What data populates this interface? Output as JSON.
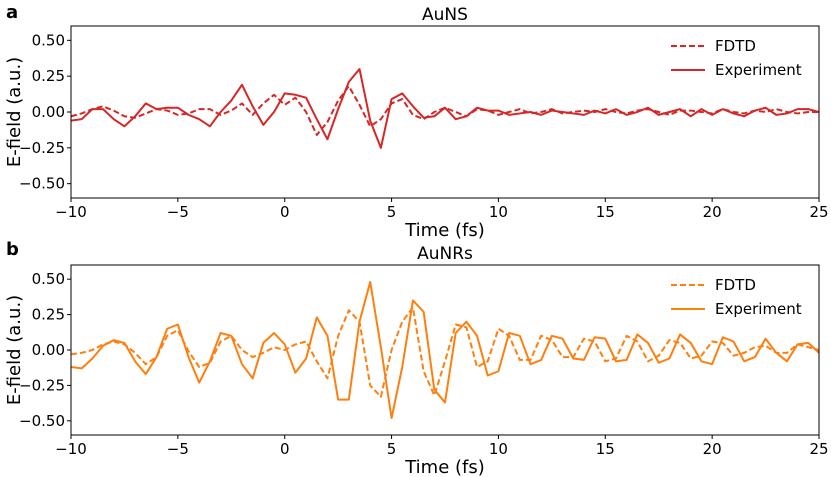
{
  "chart_data": [
    {
      "panel_label": "a",
      "type": "line",
      "title": "AuNS",
      "xlabel": "Time (fs)",
      "ylabel": "E-field (a.u.)",
      "xlim": [
        -10,
        25
      ],
      "ylim": [
        -0.6,
        0.6
      ],
      "xticks": [
        -10,
        -5,
        0,
        5,
        10,
        15,
        20,
        25
      ],
      "xtick_labels": [
        "−10",
        "−5",
        "0",
        "5",
        "10",
        "15",
        "20",
        "25"
      ],
      "yticks": [
        -0.5,
        -0.25,
        0,
        0.25,
        0.5
      ],
      "ytick_labels": [
        "−0.50",
        "−0.25",
        "0.00",
        "0.25",
        "0.50"
      ],
      "legend_position": "top-right",
      "grid": false,
      "series": [
        {
          "name": "FDTD",
          "style": "dashed",
          "color": "#d62728",
          "x": [
            -10,
            -9.5,
            -9,
            -8.5,
            -8,
            -7.5,
            -7,
            -6.5,
            -6,
            -5.5,
            -5,
            -4.5,
            -4,
            -3.5,
            -3,
            -2.5,
            -2,
            -1.5,
            -1,
            -0.5,
            0,
            0.5,
            1,
            1.5,
            2,
            2.5,
            3,
            3.5,
            4,
            4.5,
            5,
            5.5,
            6,
            6.5,
            7,
            7.5,
            8,
            8.5,
            9,
            9.5,
            10,
            10.5,
            11,
            11.5,
            12,
            12.5,
            13,
            13.5,
            14,
            14.5,
            15,
            15.5,
            16,
            16.5,
            17,
            17.5,
            18,
            18.5,
            19,
            19.5,
            20,
            20.5,
            21,
            21.5,
            22,
            22.5,
            23,
            23.5,
            24,
            24.5,
            25
          ],
          "y": [
            -0.03,
            -0.01,
            0.02,
            0.04,
            0.01,
            -0.03,
            -0.04,
            -0.01,
            0.02,
            0.01,
            -0.02,
            -0.01,
            0.02,
            0.02,
            -0.02,
            0.01,
            0.06,
            -0.02,
            0.06,
            0.12,
            0.05,
            0.1,
            0,
            -0.16,
            -0.07,
            0.08,
            0.18,
            0.05,
            -0.1,
            -0.05,
            0.06,
            0.09,
            -0.02,
            -0.05,
            0,
            0.03,
            0,
            -0.03,
            0.02,
            0.01,
            -0.02,
            0,
            0.02,
            -0.01,
            0,
            0.02,
            -0.01,
            0,
            0.01,
            0,
            0.02,
            0,
            -0.01,
            0.01,
            0.02,
            0,
            -0.02,
            0.01,
            0.01,
            0,
            -0.01,
            0.02,
            0,
            -0.01,
            0.01,
            0,
            0.02,
            0,
            -0.01,
            0,
            0
          ]
        },
        {
          "name": "Experiment",
          "style": "solid",
          "color": "#d62728",
          "x": [
            -10,
            -9.5,
            -9,
            -8.5,
            -8,
            -7.5,
            -7,
            -6.5,
            -6,
            -5.5,
            -5,
            -4.5,
            -4,
            -3.5,
            -3,
            -2.5,
            -2,
            -1.5,
            -1,
            -0.5,
            0,
            0.5,
            1,
            1.5,
            2,
            2.5,
            3,
            3.5,
            4,
            4.5,
            5,
            5.5,
            6,
            6.5,
            7,
            7.5,
            8,
            8.5,
            9,
            9.5,
            10,
            10.5,
            11,
            11.5,
            12,
            12.5,
            13,
            13.5,
            14,
            14.5,
            15,
            15.5,
            16,
            16.5,
            17,
            17.5,
            18,
            18.5,
            19,
            19.5,
            20,
            20.5,
            21,
            21.5,
            22,
            22.5,
            23,
            23.5,
            24,
            24.5,
            25
          ],
          "y": [
            -0.06,
            -0.05,
            0.02,
            0.02,
            -0.05,
            -0.1,
            -0.03,
            0.06,
            0.02,
            0.03,
            0.03,
            -0.02,
            -0.05,
            -0.1,
            0,
            0.08,
            0.19,
            0.04,
            -0.09,
            0,
            0.13,
            0.12,
            0.1,
            -0.05,
            -0.19,
            0.02,
            0.21,
            0.3,
            -0.06,
            -0.25,
            0.09,
            0.13,
            0.04,
            -0.04,
            -0.03,
            0.03,
            -0.05,
            -0.03,
            0.03,
            0.01,
            0.01,
            -0.02,
            -0.01,
            0,
            -0.02,
            0.01,
            0,
            -0.01,
            -0.02,
            0.01,
            -0.01,
            0.02,
            -0.02,
            0,
            0.03,
            -0.02,
            0,
            0.02,
            -0.03,
            0.02,
            -0.02,
            0.02,
            -0.01,
            -0.03,
            0.01,
            0.03,
            -0.02,
            -0.01,
            0.02,
            0.02,
            0
          ]
        }
      ]
    },
    {
      "panel_label": "b",
      "type": "line",
      "title": "AuNRs",
      "xlabel": "Time (fs)",
      "ylabel": "E-field (a.u.)",
      "xlim": [
        -10,
        25
      ],
      "ylim": [
        -0.6,
        0.6
      ],
      "xticks": [
        -10,
        -5,
        0,
        5,
        10,
        15,
        20,
        25
      ],
      "xtick_labels": [
        "−10",
        "−5",
        "0",
        "5",
        "10",
        "15",
        "20",
        "25"
      ],
      "yticks": [
        -0.5,
        -0.25,
        0,
        0.25,
        0.5
      ],
      "ytick_labels": [
        "−0.50",
        "−0.25",
        "0.00",
        "0.25",
        "0.50"
      ],
      "legend_position": "top-right",
      "grid": false,
      "series": [
        {
          "name": "FDTD",
          "style": "dashed",
          "color": "#ff7f0e",
          "x": [
            -10,
            -9.5,
            -9,
            -8.5,
            -8,
            -7.5,
            -7,
            -6.5,
            -6,
            -5.5,
            -5,
            -4.5,
            -4,
            -3.5,
            -3,
            -2.5,
            -2,
            -1.5,
            -1,
            -0.5,
            0,
            0.5,
            1,
            1.5,
            2,
            2.5,
            3,
            3.5,
            4,
            4.5,
            5,
            5.5,
            6,
            6.5,
            7,
            7.5,
            8,
            8.5,
            9,
            9.5,
            10,
            10.5,
            11,
            11.5,
            12,
            12.5,
            13,
            13.5,
            14,
            14.5,
            15,
            15.5,
            16,
            16.5,
            17,
            17.5,
            18,
            18.5,
            19,
            19.5,
            20,
            20.5,
            21,
            21.5,
            22,
            22.5,
            23,
            23.5,
            24,
            24.5,
            25
          ],
          "y": [
            -0.03,
            -0.02,
            0,
            0.04,
            0.06,
            0.04,
            -0.02,
            -0.1,
            -0.05,
            0.1,
            0.14,
            -0.01,
            -0.12,
            -0.09,
            0.06,
            0.1,
            0,
            -0.05,
            -0.02,
            0.02,
            0,
            0.04,
            0.06,
            -0.08,
            -0.2,
            0.1,
            0.28,
            0.2,
            -0.25,
            -0.33,
            0,
            0.2,
            0.3,
            -0.15,
            -0.32,
            -0.08,
            0.18,
            0.16,
            -0.12,
            -0.08,
            0.15,
            0.1,
            -0.07,
            -0.07,
            0.1,
            0.07,
            -0.05,
            -0.05,
            0.08,
            0.06,
            -0.08,
            -0.06,
            0.1,
            0.06,
            -0.08,
            -0.04,
            0.07,
            0.05,
            -0.06,
            -0.04,
            0.06,
            0.05,
            -0.04,
            -0.02,
            0.02,
            0.03,
            -0.02,
            -0.02,
            0.04,
            0.02,
            0
          ]
        },
        {
          "name": "Experiment",
          "style": "solid",
          "color": "#ff7f0e",
          "x": [
            -10,
            -9.5,
            -9,
            -8.5,
            -8,
            -7.5,
            -7,
            -6.5,
            -6,
            -5.5,
            -5,
            -4.5,
            -4,
            -3.5,
            -3,
            -2.5,
            -2,
            -1.5,
            -1,
            -0.5,
            0,
            0.5,
            1,
            1.5,
            2,
            2.5,
            3,
            3.5,
            4,
            4.5,
            5,
            5.5,
            6,
            6.5,
            7,
            7.5,
            8,
            8.5,
            9,
            9.5,
            10,
            10.5,
            11,
            11.5,
            12,
            12.5,
            13,
            13.5,
            14,
            14.5,
            15,
            15.5,
            16,
            16.5,
            17,
            17.5,
            18,
            18.5,
            19,
            19.5,
            20,
            20.5,
            21,
            21.5,
            22,
            22.5,
            23,
            23.5,
            24,
            24.5,
            25
          ],
          "y": [
            -0.12,
            -0.13,
            -0.06,
            0.03,
            0.07,
            0.05,
            -0.08,
            -0.17,
            -0.05,
            0.15,
            0.18,
            -0.05,
            -0.23,
            -0.08,
            0.12,
            0.1,
            -0.1,
            -0.2,
            0.05,
            0.12,
            0.04,
            -0.16,
            -0.06,
            0.23,
            0.1,
            -0.35,
            -0.35,
            0.2,
            0.48,
            0.02,
            -0.48,
            -0.12,
            0.35,
            0.27,
            -0.28,
            -0.37,
            0.12,
            0.2,
            0.1,
            -0.18,
            -0.15,
            0.12,
            0.1,
            -0.1,
            -0.07,
            0.1,
            0.08,
            -0.06,
            -0.07,
            0.09,
            0.08,
            -0.08,
            -0.07,
            0.11,
            0.05,
            -0.09,
            -0.06,
            0.11,
            0.05,
            -0.08,
            -0.1,
            0.09,
            0.06,
            -0.08,
            -0.05,
            0.08,
            -0.02,
            -0.08,
            0.04,
            0.05,
            -0.02
          ]
        }
      ]
    }
  ]
}
